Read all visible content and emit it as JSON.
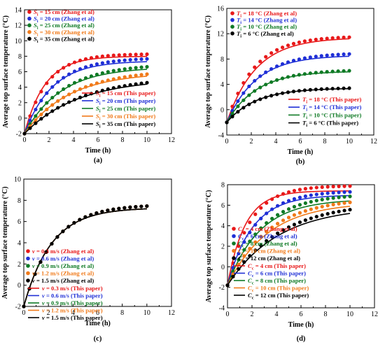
{
  "chart_data": [
    {
      "type": "line",
      "panel": "a",
      "caption": "(a)",
      "xlabel": "Time (h)",
      "ylabel": "Average top surface temperature (°C)",
      "xlim": [
        0,
        12
      ],
      "ylim": [
        -2,
        14
      ],
      "xticks": [
        "0",
        "2",
        "4",
        "6",
        "8",
        "10",
        "12"
      ],
      "yticks": [
        "-2",
        "0",
        "2",
        "4",
        "6",
        "8",
        "10",
        "12",
        "14"
      ],
      "legend_points": [
        {
          "var": "S",
          "sub": "i",
          "label": "= 15 cm (Zhang et al)"
        },
        {
          "var": "S",
          "sub": "i",
          "label": "= 20 cm (Zhang et al)"
        },
        {
          "var": "S",
          "sub": "i",
          "label": "= 25 cm (Zhang et al)"
        },
        {
          "var": "S",
          "sub": "i",
          "label": "= 30 cm (Zhang et al)"
        },
        {
          "var": "S",
          "sub": "i",
          "label": "= 35 cm (Zhang et al)"
        }
      ],
      "legend_lines": [
        {
          "var": "S",
          "sub": "i",
          "label": "= 15 cm (This paper)"
        },
        {
          "var": "S",
          "sub": "i",
          "label": "= 20 cm (This paper)"
        },
        {
          "var": "S",
          "sub": "i",
          "label": "= 25 cm (This paper)"
        },
        {
          "var": "S",
          "sub": "i",
          "label": "= 30 cm (This paper)"
        },
        {
          "var": "S",
          "sub": "i",
          "label": "= 35 cm (This paper)"
        }
      ],
      "series": [
        {
          "color": "#e8191a",
          "y0": -2,
          "line_final": 8.0,
          "line_k": 0.6,
          "pts_final": 8.3,
          "pts_k": 0.55
        },
        {
          "color": "#1f2fd6",
          "y0": -2,
          "line_final": 7.4,
          "line_k": 0.45,
          "pts_final": 7.8,
          "pts_k": 0.42
        },
        {
          "color": "#0f7a25",
          "y0": -2,
          "line_final": 6.6,
          "line_k": 0.34,
          "pts_final": 7.0,
          "pts_k": 0.32
        },
        {
          "color": "#f07a1a",
          "y0": -2,
          "line_final": 5.9,
          "line_k": 0.28,
          "pts_final": 6.3,
          "pts_k": 0.26
        },
        {
          "color": "#000000",
          "y0": -2,
          "line_final": 5.1,
          "line_k": 0.23,
          "pts_final": 5.4,
          "pts_k": 0.22
        }
      ]
    },
    {
      "type": "line",
      "panel": "b",
      "caption": "(b)",
      "xlabel": "Time (h)",
      "ylabel": "Average top surface temperature (°C)",
      "xlim": [
        0,
        12
      ],
      "ylim": [
        -4,
        16
      ],
      "xticks": [
        "0",
        "2",
        "4",
        "6",
        "8",
        "10",
        "12"
      ],
      "yticks": [
        "-4",
        "0",
        "4",
        "8",
        "12",
        "16"
      ],
      "legend_points": [
        {
          "var": "T",
          "sub": "i",
          "label": "= 18 °C (Zhang et al)"
        },
        {
          "var": "T",
          "sub": "i",
          "label": "= 14 °C (Zhang et al)"
        },
        {
          "var": "T",
          "sub": "i",
          "label": "= 10 °C (Zhang et al)"
        },
        {
          "var": "T",
          "sub": "i",
          "label": "= 6 °C (Zhang et al)"
        }
      ],
      "legend_lines": [
        {
          "var": "T",
          "sub": "i",
          "label": "= 18 °C (This paper)"
        },
        {
          "var": "T",
          "sub": "i",
          "label": "= 14 °C (This paper)"
        },
        {
          "var": "T",
          "sub": "i",
          "label": "= 10 °C (This paper)"
        },
        {
          "var": "T",
          "sub": "i",
          "label": "= 6 °C (This paper)"
        }
      ],
      "series": [
        {
          "color": "#e8191a",
          "y0": -2,
          "line_final": 11.4,
          "line_k": 0.42,
          "pts_final": 11.6,
          "pts_k": 0.45
        },
        {
          "color": "#1f2fd6",
          "y0": -2,
          "line_final": 8.6,
          "line_k": 0.42,
          "pts_final": 9.0,
          "pts_k": 0.4
        },
        {
          "color": "#0f7a25",
          "y0": -2,
          "line_final": 6.1,
          "line_k": 0.42,
          "pts_final": 6.3,
          "pts_k": 0.4
        },
        {
          "color": "#000000",
          "y0": -2,
          "line_final": 3.4,
          "line_k": 0.42,
          "pts_final": 3.5,
          "pts_k": 0.4
        }
      ]
    },
    {
      "type": "line",
      "panel": "c",
      "caption": "(c)",
      "xlabel": "Time (h)",
      "ylabel": "Average top surface temperature (°C)",
      "xlim": [
        0,
        12
      ],
      "ylim": [
        -2,
        10
      ],
      "xticks": [
        "0",
        "2",
        "4",
        "6",
        "8",
        "10",
        "12"
      ],
      "yticks": [
        "-2",
        "0",
        "2",
        "4",
        "6",
        "8",
        "10"
      ],
      "legend_points": [
        {
          "var": "v",
          "sub": "",
          "label": "= 0.3 m/s (Zhang et al)"
        },
        {
          "var": "v",
          "sub": "",
          "label": "= 0.6 m/s (Zhang et al)"
        },
        {
          "var": "v",
          "sub": "",
          "label": "= 0.9 m/s (Zhang et al)"
        },
        {
          "var": "v",
          "sub": "",
          "label": "= 1.2 m/s (Zhang et al)"
        },
        {
          "var": "v",
          "sub": "",
          "label": "= 1.5 m/s (Zhang et al)"
        }
      ],
      "legend_lines": [
        {
          "var": "v",
          "sub": "",
          "label": "= 0.3 m/s (This paper)"
        },
        {
          "var": "v",
          "sub": "",
          "label": "= 0.6 m/s (This paper)"
        },
        {
          "var": "v",
          "sub": "",
          "label": "= 0.9 m/s (This paper)"
        },
        {
          "var": "v",
          "sub": "",
          "label": "= 1.2 m/s (This paper)"
        },
        {
          "var": "v",
          "sub": "",
          "label": "= 1.5 m/s (This paper)"
        }
      ],
      "series": [
        {
          "color": "#e8191a",
          "y0": -2,
          "line_final": 7.3,
          "line_k": 0.45,
          "pts_final": 7.6,
          "pts_k": 0.42
        },
        {
          "color": "#1f2fd6",
          "y0": -2,
          "line_final": 7.3,
          "line_k": 0.45,
          "pts_final": 7.6,
          "pts_k": 0.42
        },
        {
          "color": "#0f7a25",
          "y0": -2,
          "line_final": 7.3,
          "line_k": 0.45,
          "pts_final": 7.6,
          "pts_k": 0.42
        },
        {
          "color": "#f07a1a",
          "y0": -2,
          "line_final": 7.3,
          "line_k": 0.45,
          "pts_final": 7.6,
          "pts_k": 0.42
        },
        {
          "color": "#000000",
          "y0": -2,
          "line_final": 7.3,
          "line_k": 0.45,
          "pts_final": 7.6,
          "pts_k": 0.42
        }
      ]
    },
    {
      "type": "line",
      "panel": "d",
      "caption": "(d)",
      "xlabel": "Time (h)",
      "ylabel": "Average top surface temperature (°C)",
      "xlim": [
        0,
        12
      ],
      "ylim": [
        -4,
        8
      ],
      "xticks": [
        "0",
        "2",
        "4",
        "6",
        "8",
        "10",
        "12"
      ],
      "yticks": [
        "-4",
        "-2",
        "0",
        "2",
        "4",
        "6",
        "8"
      ],
      "legend_points": [
        {
          "var": "C",
          "sub": "c",
          "label": "= 4 cm (Zhang et al)"
        },
        {
          "var": "C",
          "sub": "c",
          "label": "= 6 cm (Zhang et al)"
        },
        {
          "var": "C",
          "sub": "c",
          "label": "= 8 cm (Zhang et al)"
        },
        {
          "var": "C",
          "sub": "c",
          "label": "= 10 cm (Zhang et al)"
        },
        {
          "var": "C",
          "sub": "c",
          "label": "= 12 cm (Zhang et al)"
        }
      ],
      "legend_lines": [
        {
          "var": "C",
          "sub": "c",
          "label": "= 4 cm (This paper)"
        },
        {
          "var": "C",
          "sub": "c",
          "label": "= 6 cm (This paper)"
        },
        {
          "var": "C",
          "sub": "c",
          "label": "= 8 cm (This paper)"
        },
        {
          "var": "C",
          "sub": "c",
          "label": "= 10 cm (This paper)"
        },
        {
          "var": "C",
          "sub": "c",
          "label": "= 12 cm (This paper)"
        }
      ],
      "series": [
        {
          "color": "#e8191a",
          "y0": -1.8,
          "line_final": 7.4,
          "line_k": 0.7,
          "pts_final": 7.9,
          "pts_k": 0.55
        },
        {
          "color": "#1f2fd6",
          "y0": -1.8,
          "line_final": 7.0,
          "line_k": 0.5,
          "pts_final": 7.4,
          "pts_k": 0.45
        },
        {
          "color": "#0f7a25",
          "y0": -1.8,
          "line_final": 6.6,
          "line_k": 0.38,
          "pts_final": 7.1,
          "pts_k": 0.36
        },
        {
          "color": "#f07a1a",
          "y0": -1.8,
          "line_final": 6.3,
          "line_k": 0.3,
          "pts_final": 6.7,
          "pts_k": 0.3
        },
        {
          "color": "#000000",
          "y0": -1.8,
          "line_final": 5.9,
          "line_k": 0.24,
          "pts_final": 6.3,
          "pts_k": 0.24
        }
      ]
    }
  ]
}
